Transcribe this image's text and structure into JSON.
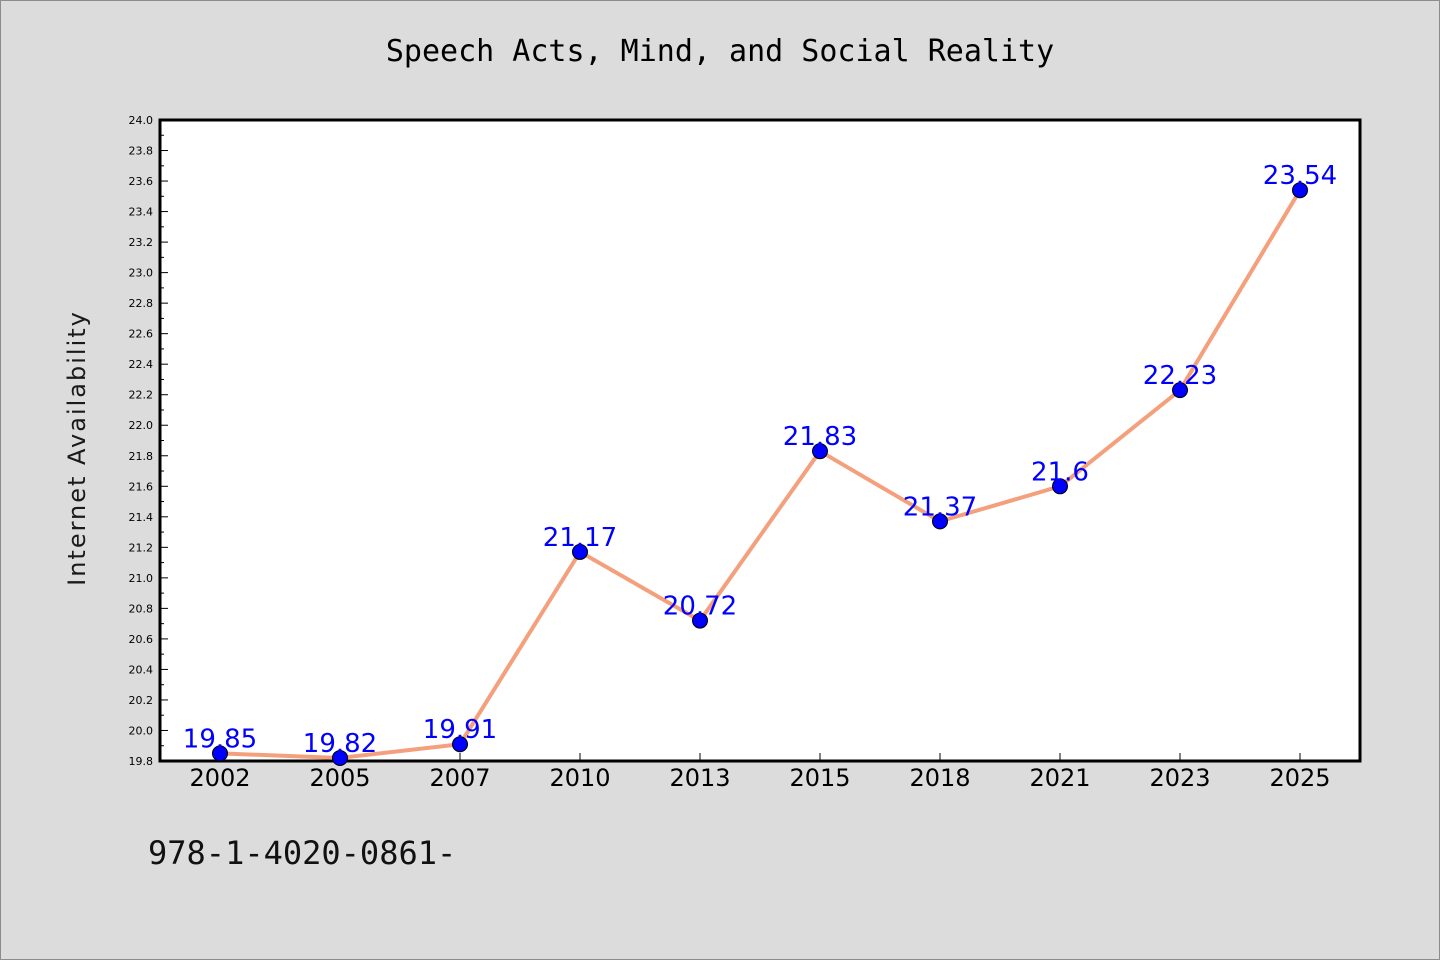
{
  "chart_data": {
    "type": "line",
    "title": "Speech Acts, Mind, and Social Reality",
    "xlabel": "",
    "ylabel": "Internet Availability",
    "categories": [
      "2002",
      "2005",
      "2007",
      "2010",
      "2013",
      "2015",
      "2018",
      "2021",
      "2023",
      "2025"
    ],
    "series": [
      {
        "values": [
          19.85,
          19.82,
          19.91,
          21.17,
          20.72,
          21.83,
          21.37,
          21.6,
          22.23,
          23.54
        ],
        "data_labels": [
          "19.85",
          "19.82",
          "19.91",
          "21.17",
          "20.72",
          "21.83",
          "21.37",
          "21.6",
          "22.23",
          "23.54"
        ],
        "line_color": "#f4a07c",
        "marker_color": "#0000ff",
        "label_color": "#0000ff"
      }
    ],
    "ylim": [
      19.8,
      24.0
    ],
    "yticks": [
      "19.8",
      "20.0",
      "20.2",
      "20.4",
      "20.6",
      "20.8",
      "21.0",
      "21.2",
      "21.4",
      "21.6",
      "21.8",
      "22.0",
      "22.2",
      "22.4",
      "22.6",
      "22.8",
      "23.0",
      "23.2",
      "23.4",
      "23.6",
      "23.8",
      "24.0"
    ],
    "grid": false,
    "legend": "none"
  },
  "footer": {
    "code": "978-1-4020-0861-"
  }
}
